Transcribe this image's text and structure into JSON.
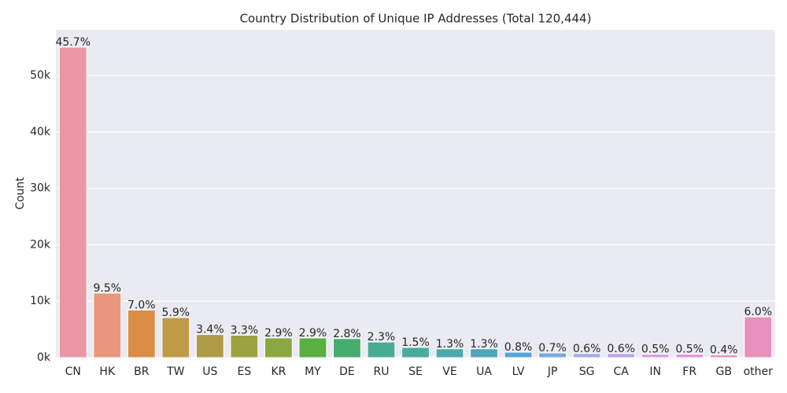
{
  "chart_data": {
    "type": "bar",
    "title": "Country Distribution of Unique IP Addresses (Total 120,444)",
    "ylabel": "Count",
    "categories": [
      "CN",
      "HK",
      "BR",
      "TW",
      "US",
      "ES",
      "KR",
      "MY",
      "DE",
      "RU",
      "SE",
      "VE",
      "UA",
      "LV",
      "JP",
      "SG",
      "CA",
      "IN",
      "FR",
      "GB",
      "other"
    ],
    "values": [
      55043,
      11442,
      8431,
      7106,
      4095,
      3975,
      3493,
      3493,
      3372,
      2770,
      1807,
      1566,
      1566,
      964,
      843,
      723,
      723,
      602,
      602,
      482,
      7227
    ],
    "value_labels": [
      "45.7%",
      "9.5%",
      "7.0%",
      "5.9%",
      "3.4%",
      "3.3%",
      "2.9%",
      "2.9%",
      "2.8%",
      "2.3%",
      "1.5%",
      "1.3%",
      "1.3%",
      "0.8%",
      "0.7%",
      "0.6%",
      "0.6%",
      "0.5%",
      "0.5%",
      "0.4%",
      "6.0%"
    ],
    "colors": [
      "#ea96a3",
      "#e9967c",
      "#db8c45",
      "#c09a47",
      "#ae9c46",
      "#9da240",
      "#8aa83f",
      "#57b041",
      "#46ab6e",
      "#48ad8f",
      "#49ab9f",
      "#4aa9ac",
      "#4ba7b9",
      "#58a6d6",
      "#7ba8e2",
      "#a3abe8",
      "#bda5e9",
      "#d89ae8",
      "#e48fdb",
      "#e68fd0",
      "#e891bd"
    ],
    "ylim": [
      0,
      58100
    ],
    "yticks": [
      {
        "value": 0,
        "label": "0k"
      },
      {
        "value": 10000,
        "label": "10k"
      },
      {
        "value": 20000,
        "label": "20k"
      },
      {
        "value": 30000,
        "label": "30k"
      },
      {
        "value": 40000,
        "label": "40k"
      },
      {
        "value": 50000,
        "label": "50k"
      }
    ],
    "grid": true
  }
}
